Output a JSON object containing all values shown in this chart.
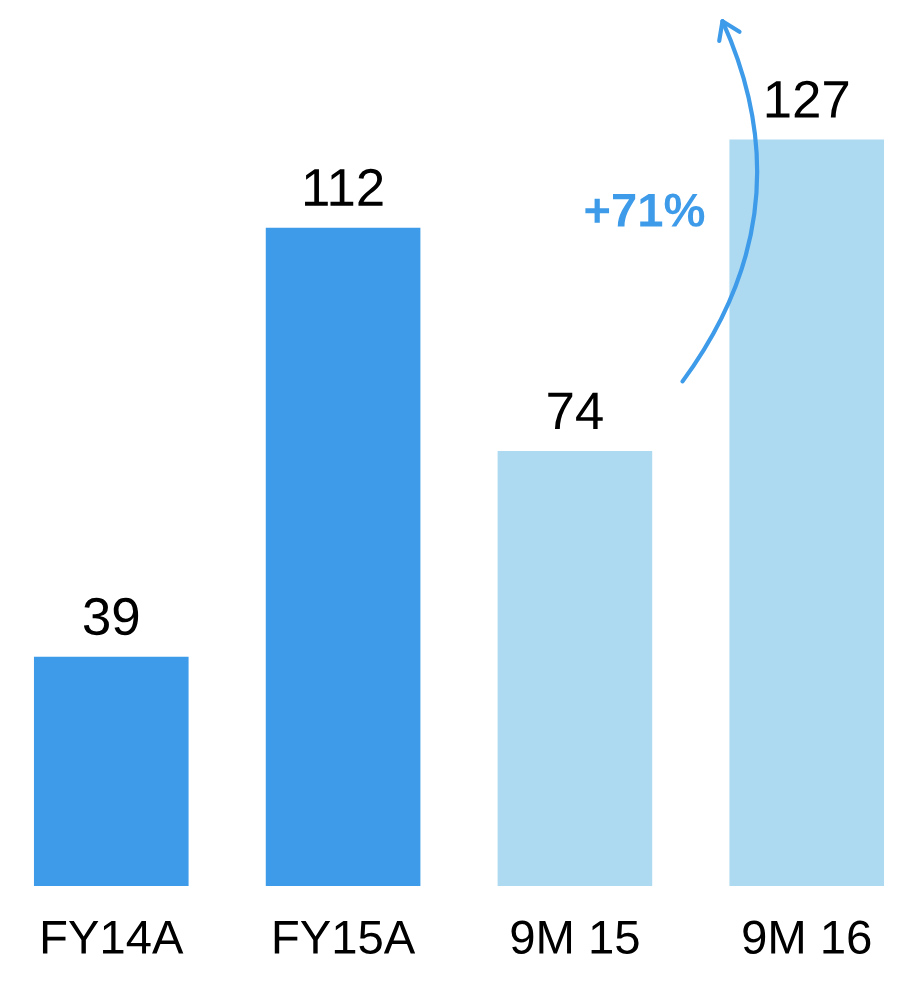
{
  "chart_data": {
    "type": "bar",
    "categories": [
      "FY14A",
      "FY15A",
      "9M 15",
      "9M 16"
    ],
    "values": [
      39,
      112,
      74,
      127
    ],
    "colors": [
      "#3d9be9",
      "#3d9be9",
      "#addaf1",
      "#addaf1"
    ],
    "data_labels": true,
    "annotations": [
      "+71%"
    ],
    "grid": false,
    "legend": false
  }
}
